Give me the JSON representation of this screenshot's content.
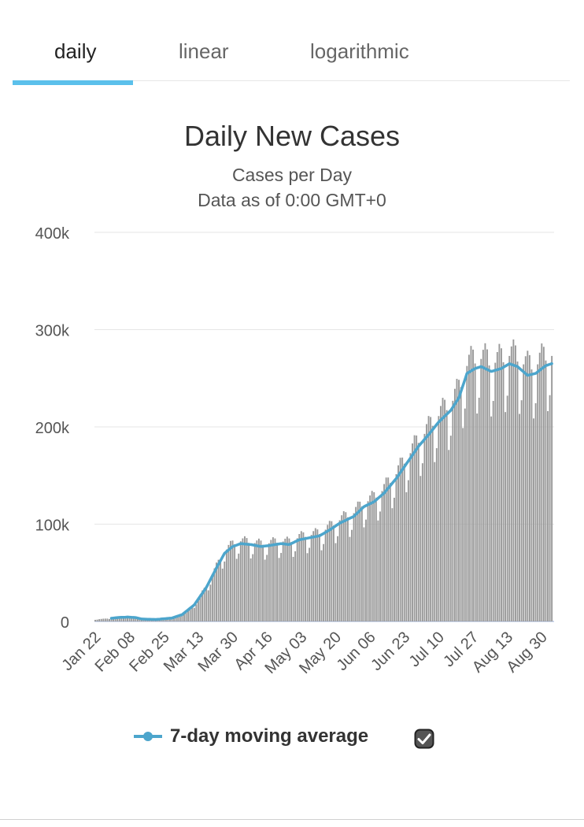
{
  "tabs": [
    {
      "label": "daily",
      "active": true
    },
    {
      "label": "linear",
      "active": false
    },
    {
      "label": "logarithmic",
      "active": false
    }
  ],
  "chart_data": {
    "type": "bar",
    "title": "Daily New Cases",
    "subtitle_lines": [
      "Cases per Day",
      "Data as of 0:00 GMT+0"
    ],
    "ylim": [
      0,
      400000
    ],
    "y_ticks": [
      0,
      100000,
      200000,
      300000,
      400000
    ],
    "y_tick_labels": [
      "0",
      "100k",
      "200k",
      "300k",
      "400k"
    ],
    "x_tick_labels": [
      "Jan 22",
      "Feb 08",
      "Feb 25",
      "Mar 13",
      "Mar 30",
      "Apr 16",
      "May 03",
      "May 20",
      "Jun 06",
      "Jun 23",
      "Jul 10",
      "Jul 27",
      "Aug 13",
      "Aug 30"
    ],
    "x_start": "Jan 22",
    "x_end": "Sep 04",
    "x_days_total": 226,
    "tick_interval_days": 17,
    "series": [
      {
        "type": "bar",
        "color": "#999999",
        "weekly_cycle_factor": [
          0.82,
          0.88,
          1.03,
          1.07,
          1.1,
          1.08,
          1.02
        ],
        "note": "daily counts fluctuate around the moving average with a weekly cycle"
      },
      {
        "type": "line",
        "name": "7-day moving average",
        "color": "#4ca5cc",
        "points_day_value": [
          [
            0,
            2000
          ],
          [
            7,
            3000
          ],
          [
            11,
            4000
          ],
          [
            16,
            4500
          ],
          [
            20,
            4000
          ],
          [
            23,
            2500
          ],
          [
            30,
            2000
          ],
          [
            38,
            3500
          ],
          [
            43,
            7000
          ],
          [
            49,
            17000
          ],
          [
            55,
            35000
          ],
          [
            60,
            55000
          ],
          [
            64,
            70000
          ],
          [
            68,
            77000
          ],
          [
            72,
            80000
          ],
          [
            77,
            79000
          ],
          [
            82,
            77000
          ],
          [
            86,
            78000
          ],
          [
            92,
            80000
          ],
          [
            96,
            79000
          ],
          [
            101,
            84000
          ],
          [
            106,
            86000
          ],
          [
            111,
            88000
          ],
          [
            116,
            94000
          ],
          [
            121,
            101000
          ],
          [
            128,
            108000
          ],
          [
            133,
            118000
          ],
          [
            138,
            123000
          ],
          [
            143,
            132000
          ],
          [
            149,
            147000
          ],
          [
            155,
            165000
          ],
          [
            160,
            180000
          ],
          [
            165,
            192000
          ],
          [
            170,
            205000
          ],
          [
            176,
            217000
          ],
          [
            180,
            230000
          ],
          [
            184,
            255000
          ],
          [
            188,
            260000
          ],
          [
            191,
            262000
          ],
          [
            196,
            257000
          ],
          [
            201,
            260000
          ],
          [
            205,
            265000
          ],
          [
            209,
            262000
          ],
          [
            214,
            253000
          ],
          [
            218,
            255000
          ],
          [
            223,
            263000
          ],
          [
            226,
            265000
          ]
        ]
      }
    ],
    "legend_position": "bottom",
    "grid": true
  },
  "legend": {
    "label": "7-day moving average",
    "line_color": "#4ca5cc",
    "checkbox_checked": true,
    "check_icon": "checkmark-icon"
  }
}
